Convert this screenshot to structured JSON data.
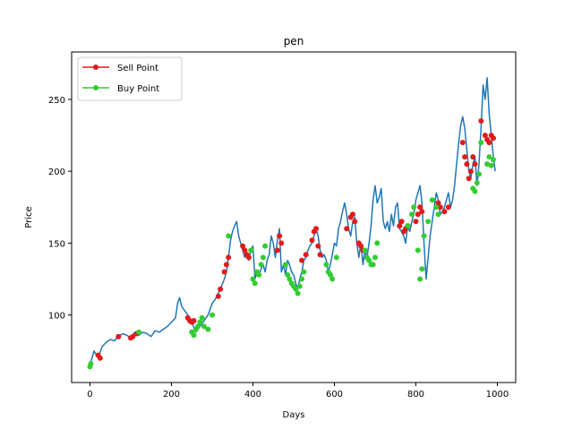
{
  "chart_data": {
    "type": "line",
    "title": "pen",
    "xlabel": "Days",
    "ylabel": "Price",
    "xlim": [
      -45,
      1045
    ],
    "ylim": [
      53,
      283
    ],
    "xticks": [
      0,
      200,
      400,
      600,
      800,
      1000
    ],
    "yticks": [
      100,
      150,
      200,
      250
    ],
    "grid": false,
    "legend_position": "top-left",
    "colors": {
      "price": "#1f77b4",
      "sell": "#e31a1c",
      "buy": "#33cc33"
    },
    "series": [
      {
        "name": "price",
        "x": [
          0,
          10,
          20,
          30,
          40,
          50,
          60,
          70,
          80,
          90,
          100,
          110,
          120,
          130,
          140,
          150,
          160,
          170,
          180,
          190,
          200,
          210,
          215,
          220,
          225,
          230,
          240,
          250,
          260,
          270,
          280,
          290,
          300,
          310,
          320,
          330,
          335,
          340,
          345,
          350,
          355,
          360,
          365,
          370,
          375,
          380,
          385,
          390,
          395,
          400,
          405,
          410,
          415,
          420,
          425,
          430,
          435,
          440,
          445,
          450,
          455,
          460,
          465,
          470,
          475,
          480,
          485,
          490,
          495,
          500,
          505,
          510,
          515,
          520,
          525,
          530,
          535,
          540,
          545,
          550,
          555,
          560,
          565,
          570,
          575,
          580,
          585,
          590,
          595,
          600,
          605,
          610,
          615,
          620,
          625,
          630,
          635,
          640,
          645,
          650,
          655,
          660,
          665,
          670,
          675,
          680,
          685,
          690,
          695,
          700,
          705,
          710,
          715,
          720,
          725,
          730,
          735,
          740,
          745,
          750,
          755,
          760,
          765,
          770,
          775,
          780,
          785,
          790,
          795,
          800,
          805,
          810,
          815,
          820,
          825,
          830,
          835,
          840,
          845,
          850,
          855,
          860,
          865,
          870,
          875,
          880,
          885,
          890,
          895,
          900,
          905,
          910,
          915,
          920,
          925,
          930,
          935,
          940,
          945,
          950,
          955,
          960,
          965,
          970,
          975,
          980,
          985,
          990,
          995
        ],
        "values": [
          65,
          75,
          70,
          78,
          81,
          83,
          82,
          85,
          87,
          86,
          84,
          88,
          86,
          88,
          87,
          85,
          89,
          88,
          90,
          92,
          95,
          98,
          108,
          112,
          106,
          104,
          100,
          95,
          88,
          92,
          96,
          100,
          108,
          112,
          118,
          125,
          130,
          140,
          152,
          158,
          162,
          165,
          155,
          150,
          145,
          140,
          142,
          138,
          145,
          148,
          125,
          130,
          128,
          132,
          135,
          130,
          138,
          142,
          155,
          150,
          140,
          152,
          160,
          130,
          135,
          128,
          138,
          135,
          130,
          128,
          122,
          118,
          125,
          130,
          138,
          140,
          145,
          148,
          150,
          155,
          160,
          155,
          145,
          140,
          142,
          138,
          130,
          135,
          142,
          150,
          148,
          160,
          165,
          172,
          178,
          170,
          160,
          155,
          165,
          168,
          150,
          140,
          150,
          135,
          145,
          140,
          150,
          162,
          180,
          190,
          178,
          182,
          188,
          165,
          160,
          165,
          158,
          170,
          162,
          175,
          178,
          160,
          158,
          155,
          150,
          162,
          158,
          165,
          170,
          180,
          185,
          190,
          178,
          150,
          125,
          140,
          155,
          165,
          175,
          185,
          180,
          170,
          172,
          175,
          180,
          185,
          175,
          180,
          190,
          205,
          220,
          232,
          238,
          230,
          215,
          200,
          195,
          205,
          210,
          190,
          205,
          230,
          260,
          250,
          265,
          240,
          225,
          210,
          200
        ]
      },
      {
        "name": "Sell Point",
        "x": [
          20,
          25,
          70,
          100,
          105,
          115,
          240,
          245,
          250,
          255,
          315,
          320,
          330,
          335,
          340,
          375,
          380,
          385,
          390,
          460,
          465,
          470,
          520,
          530,
          545,
          550,
          555,
          560,
          565,
          630,
          640,
          645,
          650,
          660,
          665,
          670,
          760,
          765,
          770,
          775,
          780,
          800,
          805,
          810,
          815,
          855,
          860,
          870,
          880,
          915,
          920,
          925,
          930,
          935,
          940,
          945,
          960,
          970,
          975,
          980,
          985,
          990
        ],
        "values": [
          72,
          70,
          85,
          84,
          85,
          87,
          98,
          96,
          95,
          96,
          113,
          118,
          130,
          135,
          140,
          148,
          145,
          142,
          140,
          145,
          155,
          150,
          138,
          142,
          152,
          158,
          160,
          148,
          142,
          160,
          168,
          170,
          165,
          150,
          148,
          145,
          162,
          165,
          158,
          160,
          162,
          165,
          170,
          175,
          172,
          178,
          175,
          172,
          175,
          220,
          210,
          205,
          195,
          200,
          210,
          205,
          235,
          225,
          222,
          220,
          225,
          223
        ]
      },
      {
        "name": "Buy Point",
        "x": [
          0,
          2,
          120,
          250,
          255,
          260,
          265,
          270,
          275,
          280,
          290,
          300,
          340,
          395,
          400,
          405,
          410,
          415,
          420,
          425,
          430,
          480,
          485,
          490,
          495,
          500,
          505,
          510,
          515,
          520,
          525,
          580,
          585,
          590,
          595,
          605,
          675,
          680,
          685,
          690,
          695,
          700,
          705,
          780,
          790,
          795,
          805,
          810,
          815,
          820,
          830,
          840,
          850,
          855,
          940,
          945,
          950,
          955,
          960,
          975,
          980,
          985,
          990
        ],
        "values": [
          64,
          66,
          88,
          88,
          86,
          90,
          92,
          95,
          98,
          92,
          90,
          100,
          155,
          145,
          125,
          122,
          130,
          128,
          135,
          140,
          148,
          135,
          128,
          125,
          122,
          120,
          118,
          115,
          120,
          125,
          130,
          135,
          130,
          128,
          125,
          140,
          145,
          140,
          138,
          135,
          135,
          140,
          150,
          162,
          170,
          175,
          145,
          125,
          132,
          155,
          165,
          180,
          175,
          170,
          188,
          186,
          192,
          198,
          220,
          205,
          210,
          204,
          208
        ]
      }
    ],
    "legend": [
      {
        "label": "Sell Point",
        "series": "Sell Point"
      },
      {
        "label": "Buy Point",
        "series": "Buy Point"
      }
    ]
  }
}
